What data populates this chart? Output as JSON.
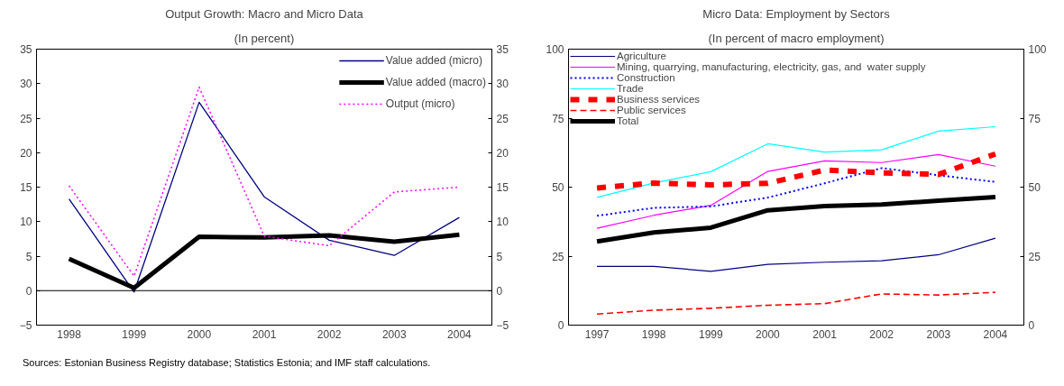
{
  "chart_data": [
    {
      "type": "line",
      "title": "Output Growth: Macro and Micro Data",
      "subtitle": "(In percent)",
      "categories": [
        "1998",
        "1999",
        "2000",
        "2001",
        "2002",
        "2003",
        "2004"
      ],
      "series": [
        {
          "name": "Value added (micro)",
          "color": "#000080",
          "line_style": "solid",
          "values": [
            13.3,
            -0.2,
            27.3,
            13.6,
            7.3,
            5.1,
            10.6
          ]
        },
        {
          "name": "Value added (macro)",
          "color": "#000000",
          "line_style": "solid",
          "values": [
            4.6,
            0.4,
            7.8,
            7.7,
            8.0,
            7.1,
            8.1
          ]
        },
        {
          "name": "Output (micro)",
          "color": "#ff00ff",
          "line_style": "dotted",
          "values": [
            15.2,
            2.1,
            29.5,
            7.9,
            6.5,
            14.3,
            15.0
          ]
        }
      ],
      "ylim": [
        -5,
        35
      ],
      "yticks": [
        -5,
        0,
        5,
        10,
        15,
        20,
        25,
        30,
        35
      ],
      "y2lim": [
        -5,
        35
      ],
      "y2ticks": [
        -5,
        0,
        5,
        10,
        15,
        20,
        25,
        30,
        35
      ],
      "ref_lines": [
        {
          "axis": "y",
          "value": 0,
          "color": "#000000"
        }
      ],
      "legend": "top right",
      "grid": false,
      "marker": "none",
      "annotations": [
        "Sources: Estonian Business Registry database; Statistics Estonia; and IMF staff calculations."
      ]
    },
    {
      "type": "line",
      "title": "Micro Data: Employment by Sectors",
      "subtitle": "(In percent of macro employment)",
      "categories": [
        "1997",
        "1998",
        "1999",
        "2000",
        "2001",
        "2002",
        "2003",
        "2004"
      ],
      "series": [
        {
          "name": "Agriculture",
          "color": "#000080",
          "line_style": "solid",
          "values": [
            21.3,
            21.3,
            19.5,
            22.0,
            22.8,
            23.3,
            25.5,
            31.5
          ]
        },
        {
          "name": "Mining, quarrying, manufacturing, electricity, gas, and  water supply",
          "color": "#ff00ff",
          "line_style": "solid",
          "values": [
            35.1,
            39.8,
            43.4,
            55.7,
            59.5,
            58.9,
            61.8,
            57.6
          ]
        },
        {
          "name": "Construction",
          "color": "#0000ff",
          "line_style": "dotted",
          "values": [
            39.6,
            42.5,
            43.0,
            46.2,
            51.4,
            56.9,
            54.3,
            51.9
          ]
        },
        {
          "name": "Trade",
          "color": "#00ffff",
          "line_style": "solid",
          "values": [
            46.3,
            51.5,
            55.6,
            65.7,
            62.7,
            63.5,
            70.3,
            71.9
          ]
        },
        {
          "name": "Business services",
          "color": "#ff0000",
          "line_style": "dashed",
          "values": [
            49.7,
            51.5,
            50.8,
            51.4,
            56.2,
            55.2,
            54.6,
            62.0
          ]
        },
        {
          "name": "Public services",
          "color": "#ff0000",
          "line_style": "dashed",
          "values": [
            4.0,
            5.4,
            6.1,
            7.2,
            7.8,
            11.3,
            10.9,
            11.9
          ]
        },
        {
          "name": "Total",
          "color": "#000000",
          "line_style": "solid",
          "values": [
            30.3,
            33.6,
            35.3,
            41.6,
            43.1,
            43.7,
            45.1,
            46.4
          ]
        }
      ],
      "ylim": [
        0,
        100
      ],
      "yticks": [
        0,
        25,
        50,
        75,
        100
      ],
      "y2lim": [
        0,
        100
      ],
      "y2ticks": [
        0,
        25,
        50,
        75,
        100
      ],
      "legend": "top left",
      "grid": false,
      "marker": "none"
    }
  ]
}
